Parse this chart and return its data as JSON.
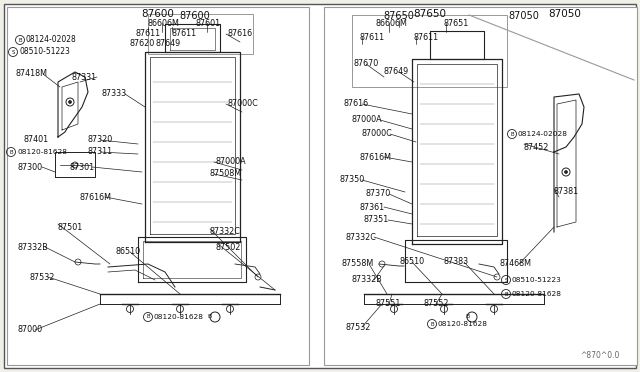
{
  "bg_color": "#f0efe8",
  "panel_bg": "#ffffff",
  "border_color": "#555555",
  "line_color": "#222222",
  "text_color": "#111111",
  "fig_width": 6.4,
  "fig_height": 3.72,
  "watermark": "^870^0.0",
  "left_title": "87600",
  "right_title1": "87650",
  "right_title2": "87050"
}
